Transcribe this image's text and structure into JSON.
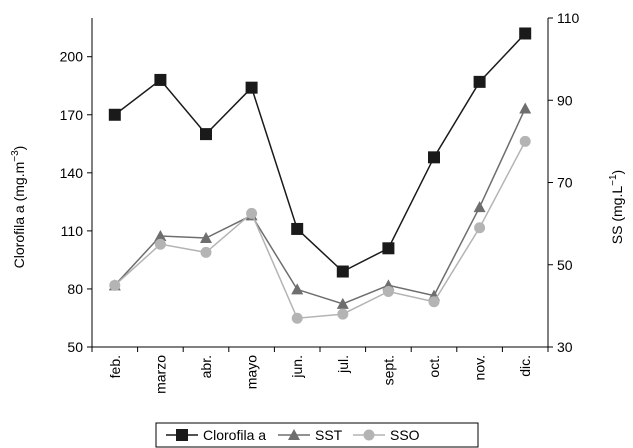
{
  "chart_data": {
    "type": "line",
    "categories": [
      "feb.",
      "marzo",
      "abr.",
      "mayo",
      "jun.",
      "jul.",
      "sept.",
      "oct.",
      "nov.",
      "dic."
    ],
    "left_axis": {
      "label": "Clorofila a (mg.m",
      "label_sup": "−3",
      "label_end": ")",
      "ylim": [
        50,
        220
      ],
      "ticks": [
        50,
        80,
        110,
        140,
        170,
        200
      ]
    },
    "right_axis": {
      "label": "SS (mg.L",
      "label_sup": "−1",
      "label_end": ")",
      "ylim": [
        30,
        110
      ],
      "ticks": [
        30,
        50,
        70,
        90,
        110
      ]
    },
    "series": [
      {
        "name": "Clorofila a",
        "axis": "left",
        "marker": "square",
        "color": "#1a1a1a",
        "values": [
          170,
          188,
          160,
          184,
          111,
          89,
          101,
          148,
          187,
          212
        ]
      },
      {
        "name": "SST",
        "axis": "right",
        "marker": "triangle",
        "color": "#6e6e6e",
        "values": [
          45,
          57,
          56.5,
          62,
          44,
          40.5,
          45,
          42.5,
          64,
          88
        ]
      },
      {
        "name": "SSO",
        "axis": "right",
        "marker": "circle",
        "color": "#b4b4b4",
        "values": [
          45,
          55,
          53,
          62.5,
          37,
          38,
          43.5,
          41,
          59,
          80
        ]
      }
    ],
    "grid": false,
    "legend_position": "bottom-center"
  }
}
